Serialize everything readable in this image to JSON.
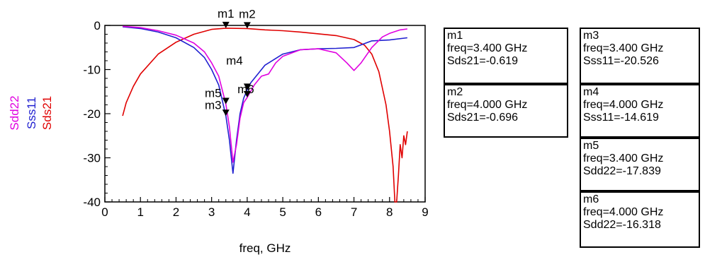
{
  "chart_data": {
    "type": "line",
    "xlabel": "freq, GHz",
    "xlim": [
      0,
      9
    ],
    "ylim": [
      -40,
      0
    ],
    "xticks": [
      "0",
      "1",
      "2",
      "3",
      "4",
      "5",
      "6",
      "7",
      "8",
      "9"
    ],
    "yticks": [
      "0",
      "-10",
      "-20",
      "-30",
      "-40"
    ],
    "series": [
      {
        "name": "Sds21",
        "color": "#e00000",
        "points": [
          [
            0.5,
            -20.5
          ],
          [
            0.6,
            -17.5
          ],
          [
            0.8,
            -13.8
          ],
          [
            1.0,
            -11.0
          ],
          [
            1.5,
            -6.5
          ],
          [
            2.0,
            -3.8
          ],
          [
            2.5,
            -2.0
          ],
          [
            3.0,
            -0.9
          ],
          [
            3.4,
            -0.619
          ],
          [
            4.0,
            -0.696
          ],
          [
            4.5,
            -1.0
          ],
          [
            5.0,
            -1.2
          ],
          [
            5.5,
            -1.5
          ],
          [
            6.0,
            -1.9
          ],
          [
            6.5,
            -2.3
          ],
          [
            7.0,
            -3.2
          ],
          [
            7.3,
            -4.5
          ],
          [
            7.5,
            -6.5
          ],
          [
            7.7,
            -10.5
          ],
          [
            7.9,
            -18.0
          ],
          [
            8.0,
            -24.0
          ],
          [
            8.1,
            -32.0
          ],
          [
            8.15,
            -40.0
          ],
          [
            8.2,
            -40.0
          ],
          [
            8.25,
            -34.0
          ],
          [
            8.3,
            -27.0
          ],
          [
            8.35,
            -30.0
          ],
          [
            8.4,
            -25.0
          ],
          [
            8.45,
            -27.0
          ],
          [
            8.5,
            -24.0
          ]
        ]
      },
      {
        "name": "Sss11",
        "color": "#2020d0",
        "points": [
          [
            0.5,
            -0.3
          ],
          [
            1.0,
            -0.7
          ],
          [
            1.5,
            -1.5
          ],
          [
            2.0,
            -2.8
          ],
          [
            2.5,
            -5.0
          ],
          [
            2.8,
            -7.3
          ],
          [
            3.0,
            -10.0
          ],
          [
            3.2,
            -13.5
          ],
          [
            3.4,
            -20.526
          ],
          [
            3.5,
            -26.0
          ],
          [
            3.6,
            -33.5
          ],
          [
            3.7,
            -26.0
          ],
          [
            3.8,
            -20.0
          ],
          [
            3.9,
            -16.5
          ],
          [
            4.0,
            -14.619
          ],
          [
            4.1,
            -13.0
          ],
          [
            4.3,
            -11.0
          ],
          [
            4.5,
            -9.0
          ],
          [
            5.0,
            -6.5
          ],
          [
            5.5,
            -5.5
          ],
          [
            6.0,
            -5.3
          ],
          [
            6.5,
            -5.2
          ],
          [
            7.0,
            -5.0
          ],
          [
            7.5,
            -3.5
          ],
          [
            8.0,
            -3.3
          ],
          [
            8.5,
            -2.8
          ]
        ]
      },
      {
        "name": "Sdd22",
        "color": "#e000e0",
        "points": [
          [
            0.5,
            -0.2
          ],
          [
            1.0,
            -0.5
          ],
          [
            1.5,
            -1.2
          ],
          [
            2.0,
            -2.2
          ],
          [
            2.5,
            -4.0
          ],
          [
            2.8,
            -6.0
          ],
          [
            3.0,
            -8.5
          ],
          [
            3.2,
            -11.5
          ],
          [
            3.4,
            -17.839
          ],
          [
            3.5,
            -23.0
          ],
          [
            3.6,
            -31.0
          ],
          [
            3.7,
            -27.0
          ],
          [
            3.8,
            -21.0
          ],
          [
            3.9,
            -17.5
          ],
          [
            4.0,
            -16.318
          ],
          [
            4.2,
            -13.5
          ],
          [
            4.4,
            -11.5
          ],
          [
            4.6,
            -11.0
          ],
          [
            4.8,
            -8.5
          ],
          [
            5.0,
            -7.0
          ],
          [
            5.5,
            -5.5
          ],
          [
            6.0,
            -5.3
          ],
          [
            6.5,
            -6.2
          ],
          [
            6.8,
            -8.5
          ],
          [
            7.0,
            -10.2
          ],
          [
            7.2,
            -8.5
          ],
          [
            7.5,
            -5.0
          ],
          [
            7.8,
            -2.6
          ],
          [
            8.0,
            -1.8
          ],
          [
            8.3,
            -1.0
          ],
          [
            8.5,
            -0.8
          ]
        ]
      }
    ],
    "markers": [
      {
        "id": "m1",
        "x": 3.4,
        "y": -0.619,
        "label_above": true
      },
      {
        "id": "m2",
        "x": 4.0,
        "y": -0.696,
        "label_above": true
      },
      {
        "id": "m3",
        "x": 3.4,
        "y": -20.526,
        "label_above": false
      },
      {
        "id": "m4",
        "x": 4.0,
        "y": -14.619,
        "label_above": false
      },
      {
        "id": "m5",
        "x": 3.4,
        "y": -17.839,
        "label_above": false
      },
      {
        "id": "m6",
        "x": 4.0,
        "y": -16.318,
        "label_above": false
      }
    ]
  },
  "marker_boxes": [
    {
      "name": "m1",
      "freq": "freq=3.400 GHz",
      "value": "Sds21=-0.619"
    },
    {
      "name": "m2",
      "freq": "freq=4.000 GHz",
      "value": "Sds21=-0.696"
    },
    {
      "name": "m3",
      "freq": "freq=3.400 GHz",
      "value": "Sss11=-20.526"
    },
    {
      "name": "m4",
      "freq": "freq=4.000 GHz",
      "value": "Sss11=-14.619"
    },
    {
      "name": "m5",
      "freq": "freq=3.400 GHz",
      "value": "Sdd22=-17.839"
    },
    {
      "name": "m6",
      "freq": "freq=4.000 GHz",
      "value": "Sdd22=-16.318"
    }
  ]
}
